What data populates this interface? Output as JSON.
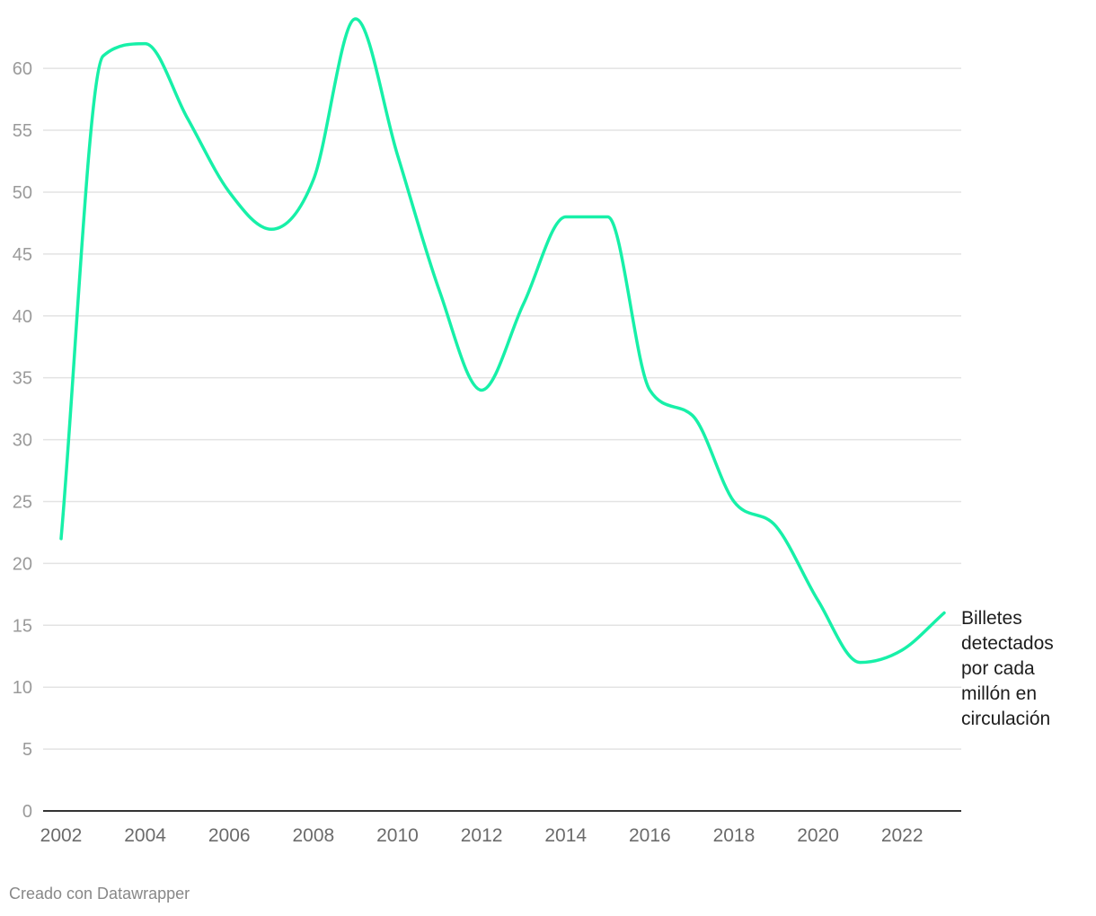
{
  "chart_data": {
    "type": "line",
    "title": "",
    "xlabel": "",
    "ylabel": "",
    "x": [
      2002,
      2003,
      2004,
      2005,
      2006,
      2007,
      2008,
      2009,
      2010,
      2011,
      2012,
      2013,
      2014,
      2015,
      2016,
      2017,
      2018,
      2019,
      2020,
      2021,
      2022,
      2023
    ],
    "series": [
      {
        "name": "Billetes detectados por cada millón en circulación",
        "color": "#17f0a8",
        "values": [
          22,
          61,
          62,
          56,
          50,
          47,
          51,
          64,
          53,
          42,
          34,
          41,
          48,
          48,
          34,
          32,
          25,
          23,
          17,
          12,
          13,
          16
        ]
      }
    ],
    "ylim": [
      0,
      64
    ],
    "yticks": [
      0,
      5,
      10,
      15,
      20,
      25,
      30,
      35,
      40,
      45,
      50,
      55,
      60
    ],
    "xticks": [
      "2002",
      "2004",
      "2006",
      "2008",
      "2010",
      "2012",
      "2014",
      "2016",
      "2018",
      "2020",
      "2022"
    ],
    "grid": true
  },
  "label": {
    "lines": [
      "Billetes",
      "detectados",
      "por cada",
      "millón en",
      "circulación"
    ]
  },
  "footer": {
    "credit": "Creado con Datawrapper"
  }
}
